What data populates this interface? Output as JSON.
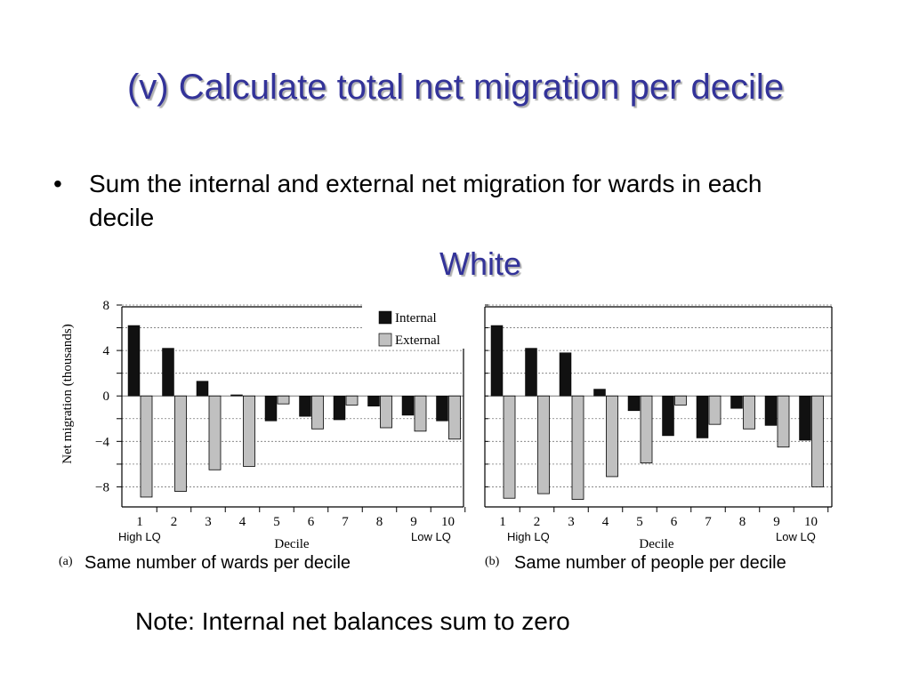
{
  "slide": {
    "title": "(v) Calculate total net migration per decile",
    "bullet": "Sum the internal and external net migration for wards in each decile",
    "subtitle": "White",
    "note": "Note: Internal net balances sum to zero"
  },
  "colors": {
    "title": "#333399",
    "internal": "#111111",
    "external": "#c0c0c0"
  },
  "chart_data": [
    {
      "type": "bar",
      "panel_label": "(a)",
      "caption": "Same number of wards per decile",
      "left_annotation": "High LQ",
      "right_annotation": "Low LQ",
      "xlabel": "Decile",
      "ylabel": "Net migration (thousands)",
      "categories": [
        "1",
        "2",
        "3",
        "4",
        "5",
        "6",
        "7",
        "8",
        "9",
        "10"
      ],
      "ylim": [
        -10,
        8
      ],
      "yticks": [
        8,
        4,
        0,
        -4,
        -8
      ],
      "ytick_labels": [
        "8",
        "4",
        "0",
        "−4",
        "−8"
      ],
      "grid": "horizontal dotted",
      "legend_position": "top-right",
      "series": [
        {
          "name": "Internal",
          "values": [
            6.2,
            4.2,
            1.3,
            0.1,
            -2.2,
            -1.8,
            -2.1,
            -0.9,
            -1.7,
            -2.2
          ]
        },
        {
          "name": "External",
          "values": [
            -8.9,
            -8.4,
            -6.5,
            -6.2,
            -0.7,
            -2.9,
            -0.8,
            -2.8,
            -3.1,
            -3.8
          ]
        }
      ]
    },
    {
      "type": "bar",
      "panel_label": "(b)",
      "caption": "Same number of people per decile",
      "left_annotation": "High LQ",
      "right_annotation": "Low LQ",
      "xlabel": "Decile",
      "categories": [
        "1",
        "2",
        "3",
        "4",
        "5",
        "6",
        "7",
        "8",
        "9",
        "10"
      ],
      "ylim": [
        -10,
        8
      ],
      "yticks": [
        8,
        4,
        0,
        -4,
        -8
      ],
      "grid": "horizontal dotted",
      "series": [
        {
          "name": "Internal",
          "values": [
            6.2,
            4.2,
            3.8,
            0.6,
            -1.3,
            -3.5,
            -3.7,
            -1.1,
            -2.6,
            -3.9
          ]
        },
        {
          "name": "External",
          "values": [
            -9.0,
            -8.6,
            -9.1,
            -7.1,
            -5.9,
            -0.8,
            -2.5,
            -2.9,
            -4.5,
            -8.0
          ]
        }
      ]
    }
  ]
}
